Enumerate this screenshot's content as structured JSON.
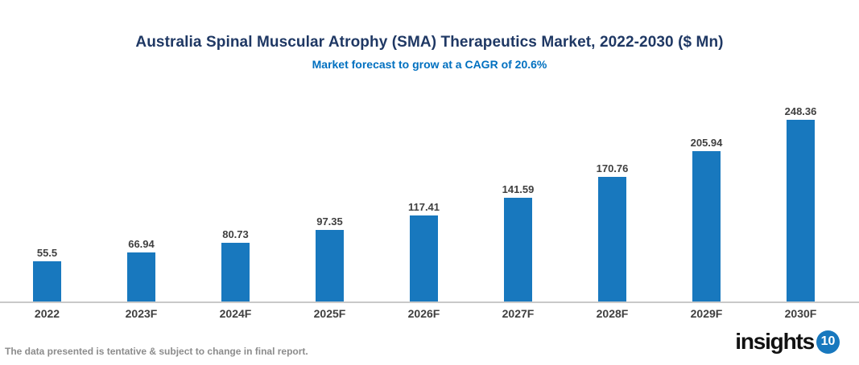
{
  "chart_data": {
    "type": "bar",
    "title": "Australia Spinal Muscular Atrophy (SMA) Therapeutics Market, 2022-2030 ($ Mn)",
    "subtitle": "Market forecast to grow at a CAGR of 20.6%",
    "categories": [
      "2022",
      "2023F",
      "2024F",
      "2025F",
      "2026F",
      "2027F",
      "2028F",
      "2029F",
      "2030F"
    ],
    "values": [
      55.5,
      66.94,
      80.73,
      97.35,
      117.41,
      141.59,
      170.76,
      205.94,
      248.36
    ],
    "xlabel": "",
    "ylabel": "",
    "ylim": [
      0,
      280
    ],
    "grid": false,
    "legend_position": "none",
    "value_labels_shown": true,
    "bar_color": "#1878BE",
    "title_color": "#1F3864",
    "subtitle_color": "#0070C0",
    "value_label_color": "#404040",
    "axis_label_color": "#3F3F3F",
    "axis_line_color": "#C9C9C9"
  },
  "footer": {
    "disclaimer": "The data presented is tentative & subject to change in final report.",
    "logo_text": "insights",
    "logo_badge": "10",
    "logo_badge_color": "#1878BE"
  }
}
